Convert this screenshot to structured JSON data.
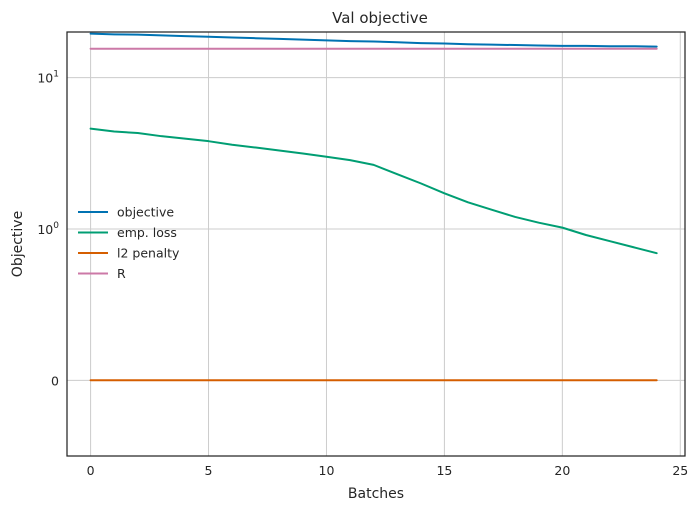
{
  "chart_data": {
    "type": "line",
    "title": "Val objective",
    "xlabel": "Batches",
    "ylabel": "Objective",
    "yscale": "symlog",
    "linthresh": 1,
    "xlim": [
      -1,
      25.2
    ],
    "ylim": [
      -0.5,
      20
    ],
    "grid": true,
    "legend_position": "center-left",
    "x_ticks": [
      0,
      5,
      10,
      15,
      20,
      25
    ],
    "x_tick_labels": [
      "0",
      "5",
      "10",
      "15",
      "20",
      "25"
    ],
    "y_ticks": [
      0,
      1,
      10
    ],
    "y_tick_labels": [
      "0",
      "10^0",
      "10^1"
    ],
    "x": [
      0,
      1,
      2,
      3,
      4,
      5,
      6,
      7,
      8,
      9,
      10,
      11,
      12,
      13,
      14,
      15,
      16,
      17,
      18,
      19,
      20,
      21,
      22,
      23,
      24
    ],
    "series": [
      {
        "name": "objective",
        "color": "#0072b2",
        "values": [
          19.5,
          19.3,
          19.2,
          19.0,
          18.8,
          18.6,
          18.4,
          18.2,
          18.0,
          17.8,
          17.6,
          17.4,
          17.3,
          17.1,
          16.9,
          16.8,
          16.6,
          16.5,
          16.4,
          16.3,
          16.2,
          16.2,
          16.1,
          16.1,
          16.0
        ]
      },
      {
        "name": "emp. loss",
        "color": "#009e73",
        "values": [
          4.6,
          4.4,
          4.3,
          4.1,
          3.95,
          3.8,
          3.6,
          3.45,
          3.3,
          3.15,
          3.0,
          2.85,
          2.65,
          2.3,
          2.0,
          1.72,
          1.5,
          1.34,
          1.2,
          1.1,
          1.02,
          0.96,
          0.92,
          0.88,
          0.84
        ]
      },
      {
        "name": "l2 penalty",
        "color": "#d55e00",
        "values": [
          0,
          0,
          0,
          0,
          0,
          0,
          0,
          0,
          0,
          0,
          0,
          0,
          0,
          0,
          0,
          0,
          0,
          0,
          0,
          0,
          0,
          0,
          0,
          0,
          0
        ]
      },
      {
        "name": "R",
        "color": "#cc79a7",
        "values": [
          15.5,
          15.5,
          15.5,
          15.5,
          15.5,
          15.5,
          15.5,
          15.5,
          15.5,
          15.5,
          15.5,
          15.5,
          15.5,
          15.5,
          15.5,
          15.5,
          15.5,
          15.5,
          15.5,
          15.5,
          15.5,
          15.5,
          15.5,
          15.5,
          15.5
        ]
      }
    ]
  }
}
